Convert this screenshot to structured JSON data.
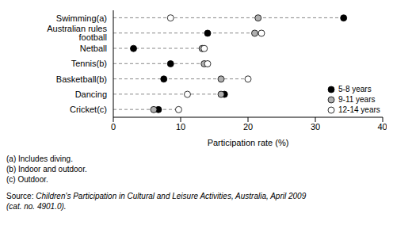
{
  "chart_data": {
    "type": "dot",
    "orientation": "horizontal",
    "categories": [
      "Swimming(a)",
      "Australian rules football",
      "Netball",
      "Tennis(b)",
      "Basketball(b)",
      "Dancing",
      "Cricket(c)"
    ],
    "series": [
      {
        "name": "5-8 years",
        "color": "#000000",
        "marker": "circle",
        "values": [
          34.2,
          14,
          3,
          8.5,
          7.5,
          16.5,
          6.7
        ]
      },
      {
        "name": "9-11 years",
        "color": "#b0b0b0",
        "marker": "circle",
        "values": [
          21.5,
          21,
          13.2,
          13.5,
          16,
          16,
          6
        ]
      },
      {
        "name": "12-14 years",
        "color": "#ffffff",
        "marker": "circle",
        "values": [
          8.5,
          22,
          13.5,
          14,
          20,
          11,
          9.7
        ]
      }
    ],
    "xlabel": "Participation rate (%)",
    "xlim": [
      0,
      40
    ],
    "xticks": [
      0,
      10,
      20,
      30,
      40
    ],
    "grid": false,
    "legend": "right",
    "footnotes": [
      "(a) Includes diving.",
      "(b) Indoor and outdoor.",
      "(c) Outdoor."
    ],
    "source": "Source: Children's Participation in Cultural and Leisure Activities, Australia, April 2009 (cat. no. 4901.0)."
  }
}
